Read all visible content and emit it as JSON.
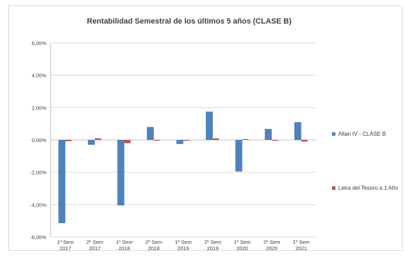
{
  "chart_data": {
    "type": "bar",
    "title": "Rentabilidad Semestral de los últimos 5 años (CLASE B)",
    "xlabel": "",
    "ylabel": "",
    "ylim": [
      -0.06,
      0.06
    ],
    "yticks": [
      "6,00%",
      "4,00%",
      "2,00%",
      "0,00%",
      "-2,00%",
      "-4,00%",
      "-6,00%"
    ],
    "grid": true,
    "legend_position": "right",
    "categories": [
      [
        "1º Sem",
        "2017"
      ],
      [
        "2º Sem",
        "2017"
      ],
      [
        "1º Sem",
        "2018"
      ],
      [
        "2º Sem",
        "2018"
      ],
      [
        "1º Sem",
        "2019"
      ],
      [
        "2º Sem",
        "2019"
      ],
      [
        "1º Sem",
        "2020"
      ],
      [
        "2º Sem",
        "2020"
      ],
      [
        "1º Sem",
        "2021"
      ]
    ],
    "series": [
      {
        "name": "Altan IV - CLASE B",
        "color": "#4f81bd",
        "values": [
          -0.0515,
          -0.003,
          -0.0405,
          0.008,
          -0.0025,
          0.0175,
          -0.0195,
          0.0068,
          0.011
        ]
      },
      {
        "name": "Letra del Tesoro a 1 Año",
        "color": "#c0504d",
        "values": [
          -0.0008,
          0.001,
          -0.002,
          -0.0005,
          -0.0005,
          0.001,
          0.0005,
          -0.0005,
          -0.001
        ]
      }
    ]
  }
}
